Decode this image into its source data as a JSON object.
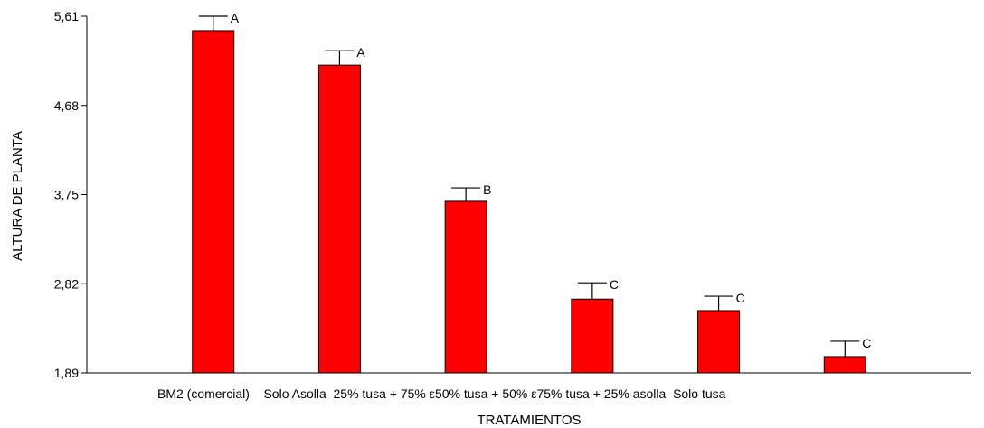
{
  "chart_data": {
    "type": "bar",
    "title": "",
    "xlabel": "TRATAMIENTOS",
    "ylabel": "ALTURA DE PLANTA",
    "categories": [
      "BM2 (comercial)",
      "Solo Asolla",
      "25% tusa + 75% ε50% tusa + 50% ε75% tusa + 25% asolla",
      "",
      "",
      "Solo tusa"
    ],
    "category_text": "BM2 (comercial)    Solo Asolla  25% tusa + 75% ε50% tusa + 50% ε75% tusa + 25% asolla  Solo tusa",
    "values": [
      5.46,
      5.1,
      3.68,
      2.66,
      2.54,
      2.06
    ],
    "error_upper": [
      5.61,
      5.25,
      3.82,
      2.83,
      2.69,
      2.22
    ],
    "group_labels": [
      "A",
      "A",
      "B",
      "C",
      "C",
      "C"
    ],
    "yticks": [
      "5,61",
      "4,68",
      "3,75",
      "2,82",
      "1,89"
    ],
    "ytick_values": [
      5.61,
      4.68,
      3.75,
      2.82,
      1.89
    ],
    "ylim": [
      1.89,
      5.61
    ],
    "colors": {
      "bar": "#ff0000",
      "axis": "#000000"
    },
    "grid": false,
    "legend": "none"
  }
}
